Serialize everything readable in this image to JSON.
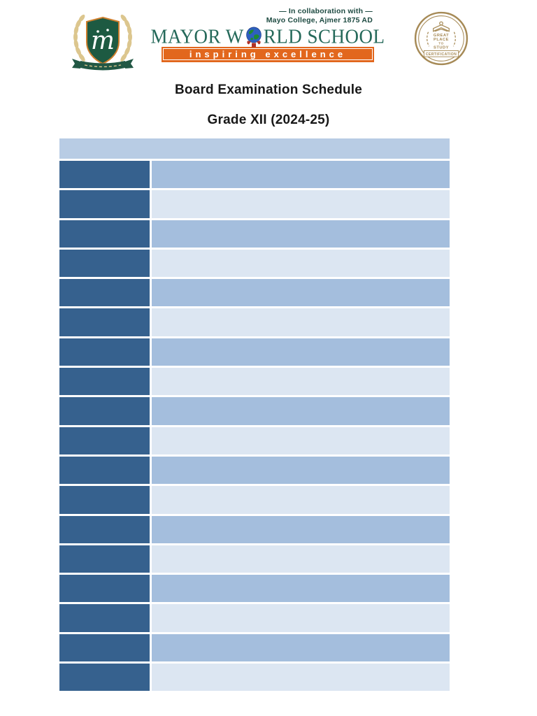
{
  "header": {
    "school_crest": {
      "monogram": "m",
      "shield_color": "#1d5a42",
      "shield_border_color": "#cf7f2e",
      "laurel_color": "#dcc68e",
      "ribbon_color": "#215744"
    },
    "school_logo": {
      "title_part1": "MAYOR W",
      "title_part2": "RLD SCHOOL",
      "tagline": "inspiring excellence",
      "collab_line1": "— In collaboration with —",
      "collab_line2": "Mayo College, Ajmer 1875 AD",
      "title_color": "#25695a",
      "banner_color": "#e2671d",
      "collab_color": "#1d4a41",
      "globe_ocean_color": "#2e5fc0",
      "globe_land_color": "#1d8a35",
      "hands_color": "#b03227"
    },
    "certification_badge": {
      "line1": "GREAT",
      "line2": "PLACE",
      "line3": "TO",
      "line4": "STUDY",
      "banner": "CERTIFICATION",
      "color": "#a68a56"
    }
  },
  "titles": {
    "main": "Board Examination Schedule",
    "sub": "Grade XII (2024-25)"
  },
  "schedule_table": {
    "colors": {
      "header": "#b8cce4",
      "dark": "#36618e",
      "medium": "#a4bedd",
      "light": "#dce6f2"
    },
    "header_label": "",
    "rows": [
      {
        "left": "",
        "right": "",
        "tone": "medium"
      },
      {
        "left": "",
        "right": "",
        "tone": "light"
      },
      {
        "left": "",
        "right": "",
        "tone": "medium"
      },
      {
        "left": "",
        "right": "",
        "tone": "light"
      },
      {
        "left": "",
        "right": "",
        "tone": "medium"
      },
      {
        "left": "",
        "right": "",
        "tone": "light"
      },
      {
        "left": "",
        "right": "",
        "tone": "medium"
      },
      {
        "left": "",
        "right": "",
        "tone": "light"
      },
      {
        "left": "",
        "right": "",
        "tone": "medium"
      },
      {
        "left": "",
        "right": "",
        "tone": "light"
      },
      {
        "left": "",
        "right": "",
        "tone": "medium"
      },
      {
        "left": "",
        "right": "",
        "tone": "light"
      },
      {
        "left": "",
        "right": "",
        "tone": "medium"
      },
      {
        "left": "",
        "right": "",
        "tone": "light"
      },
      {
        "left": "",
        "right": "",
        "tone": "medium"
      },
      {
        "left": "",
        "right": "",
        "tone": "light"
      },
      {
        "left": "",
        "right": "",
        "tone": "medium"
      },
      {
        "left": "",
        "right": "",
        "tone": "light"
      }
    ]
  }
}
